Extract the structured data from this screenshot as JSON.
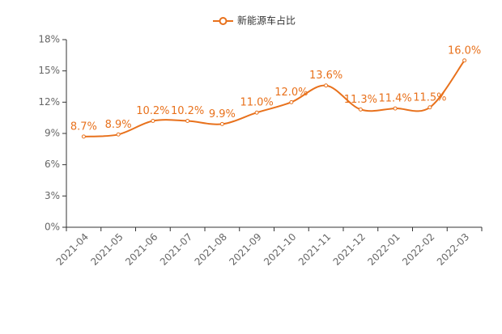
{
  "chart_data": {
    "type": "line",
    "categories": [
      "2021-04",
      "2021-05",
      "2021-06",
      "2021-07",
      "2021-08",
      "2021-09",
      "2021-10",
      "2021-11",
      "2021-12",
      "2022-01",
      "2022-02",
      "2022-03"
    ],
    "series": [
      {
        "name": "新能源车占比",
        "color": "#e8711c",
        "values": [
          8.7,
          8.9,
          10.2,
          10.2,
          9.9,
          11.0,
          12.0,
          13.6,
          11.3,
          11.4,
          11.5,
          16.0
        ],
        "value_labels": [
          "8.7%",
          "8.9%",
          "10.2%",
          "10.2%",
          "9.9%",
          "11.0%",
          "12.0%",
          "13.6%",
          "11.3%",
          "11.4%",
          "11.5%",
          "16.0%"
        ]
      }
    ],
    "ylim": [
      0,
      18
    ],
    "yticks": [
      {
        "value": 0,
        "label": "0%"
      },
      {
        "value": 3,
        "label": "3%"
      },
      {
        "value": 6,
        "label": "6%"
      },
      {
        "value": 9,
        "label": "9%"
      },
      {
        "value": 12,
        "label": "12%"
      },
      {
        "value": 15,
        "label": "15%"
      },
      {
        "value": 18,
        "label": "18%"
      }
    ],
    "smooth": true,
    "grid": false
  }
}
